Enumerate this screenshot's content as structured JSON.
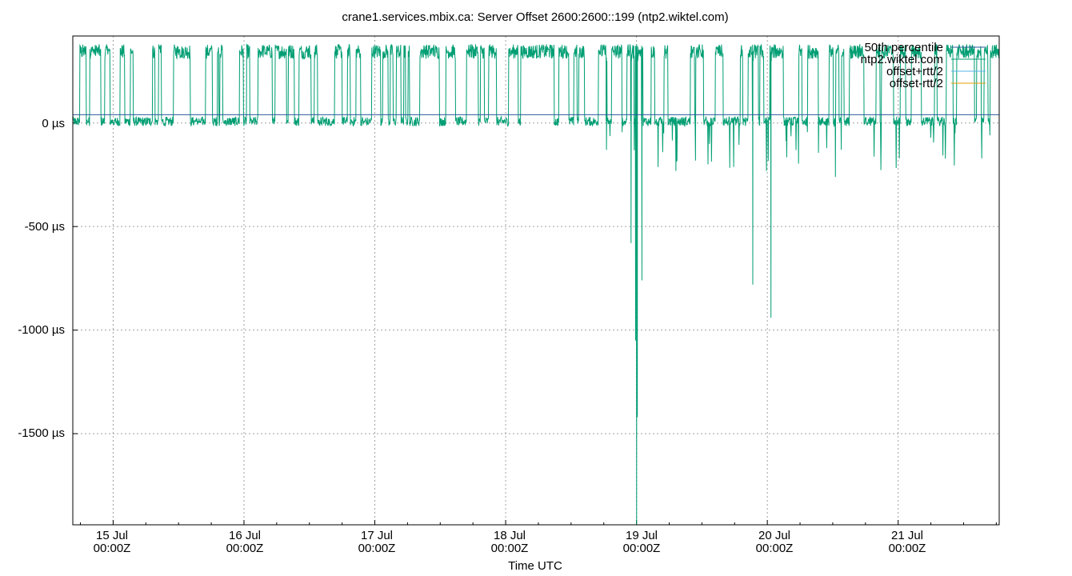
{
  "chart_data": {
    "type": "line",
    "title": "crane1.services.mbix.ca: Server Offset 2600:2600::199 (ntp2.wiktel.com)",
    "xlabel": "Time UTC",
    "ylabel": "",
    "y_unit": "µs",
    "x_range_days": [
      "2025-07-14T16:36Z",
      "2025-07-21T18:32Z"
    ],
    "ylim": [
      -1940,
      420
    ],
    "yticks": [
      0,
      -500,
      -1000,
      -1500
    ],
    "ytick_labels": [
      "0 µs",
      "-500 µs",
      "-1000 µs",
      "-1500 µs"
    ],
    "xticks": [
      {
        "t": "2025-07-15T00:00Z",
        "label1": "15 Jul",
        "label2": "00:00Z"
      },
      {
        "t": "2025-07-16T00:00Z",
        "label1": "16 Jul",
        "label2": "00:00Z"
      },
      {
        "t": "2025-07-17T00:00Z",
        "label1": "17 Jul",
        "label2": "00:00Z"
      },
      {
        "t": "2025-07-18T00:00Z",
        "label1": "18 Jul",
        "label2": "00:00Z"
      },
      {
        "t": "2025-07-19T00:00Z",
        "label1": "19 Jul",
        "label2": "00:00Z"
      },
      {
        "t": "2025-07-20T00:00Z",
        "label1": "20 Jul",
        "label2": "00:00Z"
      },
      {
        "t": "2025-07-21T00:00Z",
        "label1": "21 Jul",
        "label2": "00:00Z"
      }
    ],
    "grid": true,
    "legend_position": "top-right",
    "series": [
      {
        "name": "50th percentile",
        "color": "#2b5a9a",
        "constant": 40
      },
      {
        "name": "ntp2.wiktel.com",
        "color": "#009e73",
        "baseline_low": 10,
        "baseline_high": 350,
        "notable_dips": [
          {
            "t": "2025-07-18T18:30Z",
            "y": -130
          },
          {
            "t": "2025-07-18T23:00Z",
            "y": -580
          },
          {
            "t": "2025-07-18T23:50Z",
            "y": -1050
          },
          {
            "t": "2025-07-19T00:02Z",
            "y": -1940
          },
          {
            "t": "2025-07-19T00:10Z",
            "y": -1420
          },
          {
            "t": "2025-07-19T01:00Z",
            "y": -760
          },
          {
            "t": "2025-07-19T21:20Z",
            "y": -780
          },
          {
            "t": "2025-07-20T00:40Z",
            "y": -940
          },
          {
            "t": "2025-07-20T12:30Z",
            "y": -260
          }
        ]
      },
      {
        "name": "offset+rtt/2",
        "color": "#56b4e9"
      },
      {
        "name": "offset-rtt/2",
        "color": "#e69f00"
      }
    ]
  }
}
